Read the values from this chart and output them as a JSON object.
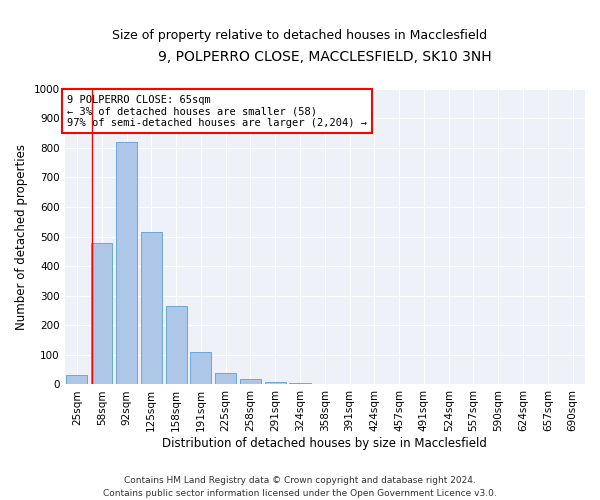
{
  "title1": "9, POLPERRO CLOSE, MACCLESFIELD, SK10 3NH",
  "title2": "Size of property relative to detached houses in Macclesfield",
  "xlabel": "Distribution of detached houses by size in Macclesfield",
  "ylabel": "Number of detached properties",
  "categories": [
    "25sqm",
    "58sqm",
    "92sqm",
    "125sqm",
    "158sqm",
    "191sqm",
    "225sqm",
    "258sqm",
    "291sqm",
    "324sqm",
    "358sqm",
    "391sqm",
    "424sqm",
    "457sqm",
    "491sqm",
    "524sqm",
    "557sqm",
    "590sqm",
    "624sqm",
    "657sqm",
    "690sqm"
  ],
  "values": [
    33,
    480,
    820,
    515,
    265,
    110,
    38,
    20,
    10,
    5,
    0,
    0,
    0,
    0,
    0,
    0,
    0,
    0,
    0,
    0,
    0
  ],
  "bar_color": "#aec6e8",
  "bar_edge_color": "#5a9fd4",
  "annotation_text": "9 POLPERRO CLOSE: 65sqm\n← 3% of detached houses are smaller (58)\n97% of semi-detached houses are larger (2,204) →",
  "annotation_box_color": "white",
  "annotation_border_color": "red",
  "vline_color": "red",
  "vline_x": 0.6,
  "ylim": [
    0,
    1000
  ],
  "yticks": [
    0,
    100,
    200,
    300,
    400,
    500,
    600,
    700,
    800,
    900,
    1000
  ],
  "background_color": "#eef2f8",
  "footer_text": "Contains HM Land Registry data © Crown copyright and database right 2024.\nContains public sector information licensed under the Open Government Licence v3.0.",
  "title1_fontsize": 10,
  "title2_fontsize": 9,
  "xlabel_fontsize": 8.5,
  "ylabel_fontsize": 8.5,
  "tick_fontsize": 7.5,
  "annotation_fontsize": 7.5,
  "footer_fontsize": 6.5
}
